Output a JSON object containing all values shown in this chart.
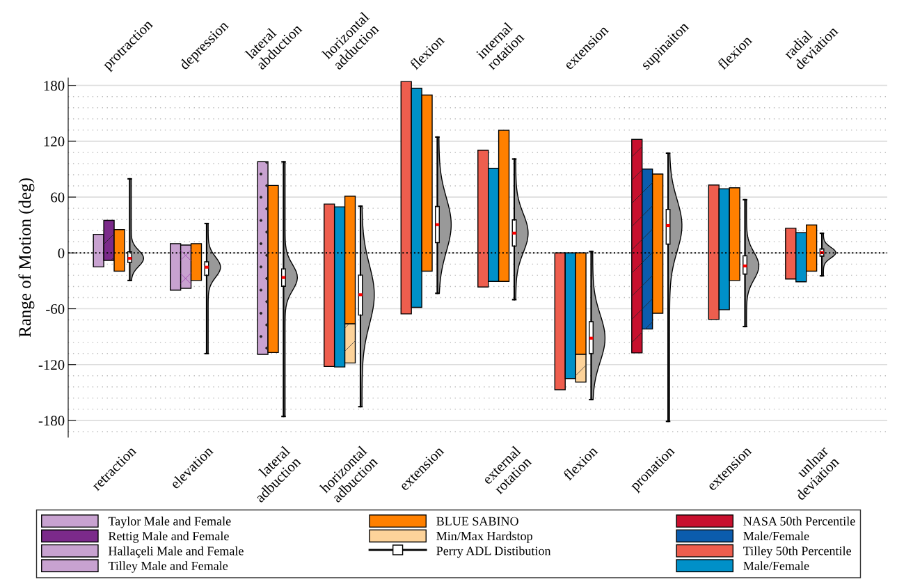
{
  "chart_data": {
    "type": "bar",
    "ylabel": "Range of Motion (deg)",
    "categories": [
      "retraction",
      "elevation",
      "lateral\nadbuction",
      "horizontal\nadbuction",
      "extension",
      "external\nrotation",
      "flexion",
      "pronation",
      "extension",
      "unlnar\ndeviation"
    ],
    "annotations": [
      "protraction",
      "depression",
      "lateral\nabduction",
      "horizontal\nadduction",
      "flexion",
      "internal\nrotation",
      "extension",
      "supinaiton",
      "flexion",
      "radial\ndeviation"
    ],
    "ylim": [
      -198,
      188
    ],
    "yticks": [
      -180,
      -120,
      -60,
      0,
      60,
      120,
      180
    ],
    "grid": "y",
    "legend": "bottom",
    "ref_lines": [
      {
        "axis": "y",
        "value": 0,
        "color": "#000000",
        "line_style": "dotted"
      }
    ],
    "series": [
      {
        "name": "Taylor Male and Female",
        "color": "#c8a2d0",
        "base": [
          -15,
          -40,
          null,
          null,
          null,
          null,
          null,
          null,
          null,
          null
        ],
        "values": [
          35,
          50,
          null,
          null,
          null,
          null,
          null,
          null,
          null,
          null
        ]
      },
      {
        "name": "Rettig Male and Female",
        "color": "#7b2a8a",
        "base": [
          -8,
          null,
          null,
          null,
          null,
          null,
          null,
          null,
          null,
          null
        ],
        "values": [
          43,
          null,
          null,
          null,
          null,
          null,
          null,
          null,
          null,
          null
        ]
      },
      {
        "name": "Hallaçeli Male and Female",
        "color": "#c8a2d0",
        "base": [
          null,
          -38,
          null,
          null,
          null,
          null,
          null,
          null,
          null,
          null
        ],
        "values": [
          null,
          46.5,
          null,
          null,
          null,
          null,
          null,
          null,
          null,
          null
        ]
      },
      {
        "name": "Tilley Male and Female",
        "color": "#c8a2d0",
        "base": [
          null,
          null,
          -109,
          null,
          null,
          null,
          null,
          null,
          null,
          null
        ],
        "values": [
          null,
          null,
          207,
          null,
          null,
          null,
          null,
          null,
          null,
          null
        ]
      },
      {
        "name": "NASA 50th Percentile",
        "color": "#c8102e",
        "base": [
          null,
          null,
          null,
          null,
          null,
          null,
          null,
          -107.4,
          null,
          null
        ],
        "values": [
          null,
          null,
          null,
          null,
          null,
          null,
          null,
          229.4,
          null,
          null
        ]
      },
      {
        "name": "Male/Female",
        "color": "#0b5cad",
        "base": [
          null,
          null,
          null,
          null,
          null,
          null,
          null,
          -81.8,
          null,
          null
        ],
        "values": [
          null,
          null,
          null,
          null,
          null,
          null,
          null,
          171.9,
          null,
          null
        ]
      },
      {
        "name": "Tilley 50th Percentile",
        "color": "#ee5e4e",
        "base": [
          null,
          null,
          null,
          -122,
          -65.5,
          -36.6,
          -147,
          null,
          -71.5,
          -28
        ],
        "values": [
          null,
          null,
          null,
          174.5,
          249.7,
          147,
          147,
          null,
          144.5,
          54.5
        ]
      },
      {
        "name": "Male/Female",
        "color": "#0090c8",
        "base": [
          null,
          null,
          null,
          -122.5,
          -58.5,
          -30.6,
          -135,
          null,
          -61,
          -31
        ],
        "values": [
          null,
          null,
          null,
          172,
          235.5,
          121.5,
          135,
          null,
          130,
          52.7
        ]
      },
      {
        "name": "BLUE SABINO",
        "color": "#ff8000",
        "base": [
          -19.6,
          -29.6,
          -107,
          -76.3,
          -19.6,
          -30.6,
          -109,
          -64.8,
          -29.6,
          -19.6
        ],
        "values": [
          44.7,
          39.6,
          179.5,
          137.3,
          189.3,
          162.4,
          109,
          149.6,
          99.6,
          49.7
        ]
      },
      {
        "name": "Min/Max Hardstop",
        "color": "#fdd39a",
        "base": [
          null,
          null,
          null,
          -118.2,
          null,
          null,
          -138.8,
          null,
          null,
          null
        ],
        "values": [
          null,
          null,
          null,
          41.9,
          null,
          null,
          29.8,
          null,
          null,
          null
        ]
      },
      {
        "name": "Perry ADL Distibution",
        "type": "box",
        "color": "#ffffff",
        "boxes": [
          {
            "low": -29.6,
            "q1": -10.3,
            "median": -5.8,
            "q3": 1.3,
            "high": 79.6
          },
          {
            "low": -108.2,
            "q1": -24.1,
            "median": -15.3,
            "q3": -9.5,
            "high": 31.6
          },
          {
            "low": -175.7,
            "q1": -35.9,
            "median": -26.4,
            "q3": -17.1,
            "high": 97.9
          },
          {
            "low": -165.2,
            "q1": -66.8,
            "median": -44.9,
            "q3": -23.8,
            "high": 50.2
          },
          {
            "low": -43.4,
            "q1": 11,
            "median": 30.4,
            "q3": 50,
            "high": 124.5
          },
          {
            "low": -50.2,
            "q1": 7.3,
            "median": 21.3,
            "q3": 35.6,
            "high": 100.9
          },
          {
            "low": -157.6,
            "q1": -108.2,
            "median": -91.6,
            "q3": -73.8,
            "high": 1.5
          },
          {
            "low": -181,
            "q1": 9.3,
            "median": 29.4,
            "q3": 46.9,
            "high": 107.2
          },
          {
            "low": -79.1,
            "q1": -22.8,
            "median": -14,
            "q3": -3,
            "high": 57.2
          },
          {
            "low": -24.6,
            "q1": -3.5,
            "median": 0.3,
            "q3": 4.3,
            "high": 21.1
          }
        ]
      }
    ]
  }
}
